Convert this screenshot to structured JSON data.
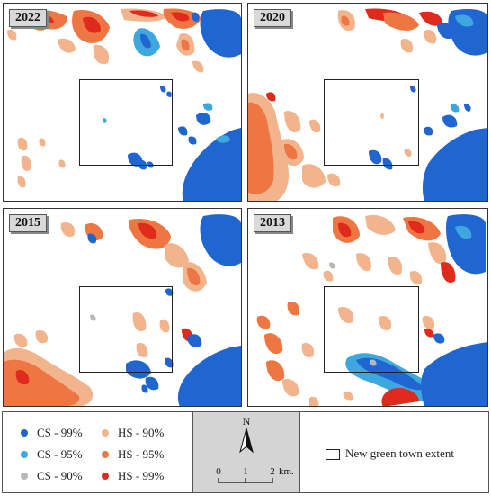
{
  "panels": [
    {
      "year": "2022"
    },
    {
      "year": "2020"
    },
    {
      "year": "2015"
    },
    {
      "year": "2013"
    }
  ],
  "legend": {
    "items": [
      {
        "label": "CS - 99%",
        "color": "#1f66d1"
      },
      {
        "label": "CS - 95%",
        "color": "#3fa7df"
      },
      {
        "label": "CS - 90%",
        "color": "#b8b8b8"
      },
      {
        "label": "HS - 90%",
        "color": "#f2b48c"
      },
      {
        "label": "HS - 95%",
        "color": "#ee7643"
      },
      {
        "label": "HS - 99%",
        "color": "#e02a1c"
      }
    ],
    "north": "N",
    "scale": {
      "t0": "0",
      "t1": "1",
      "t2": "2",
      "unit": "km."
    },
    "extent_label": "New green town extent"
  },
  "colors": {
    "cs99": "#1f66d1",
    "cs95": "#3fa7df",
    "cs90": "#b8b8b8",
    "hs90": "#f2b48c",
    "hs95": "#ee7643",
    "hs99": "#e02a1c"
  }
}
